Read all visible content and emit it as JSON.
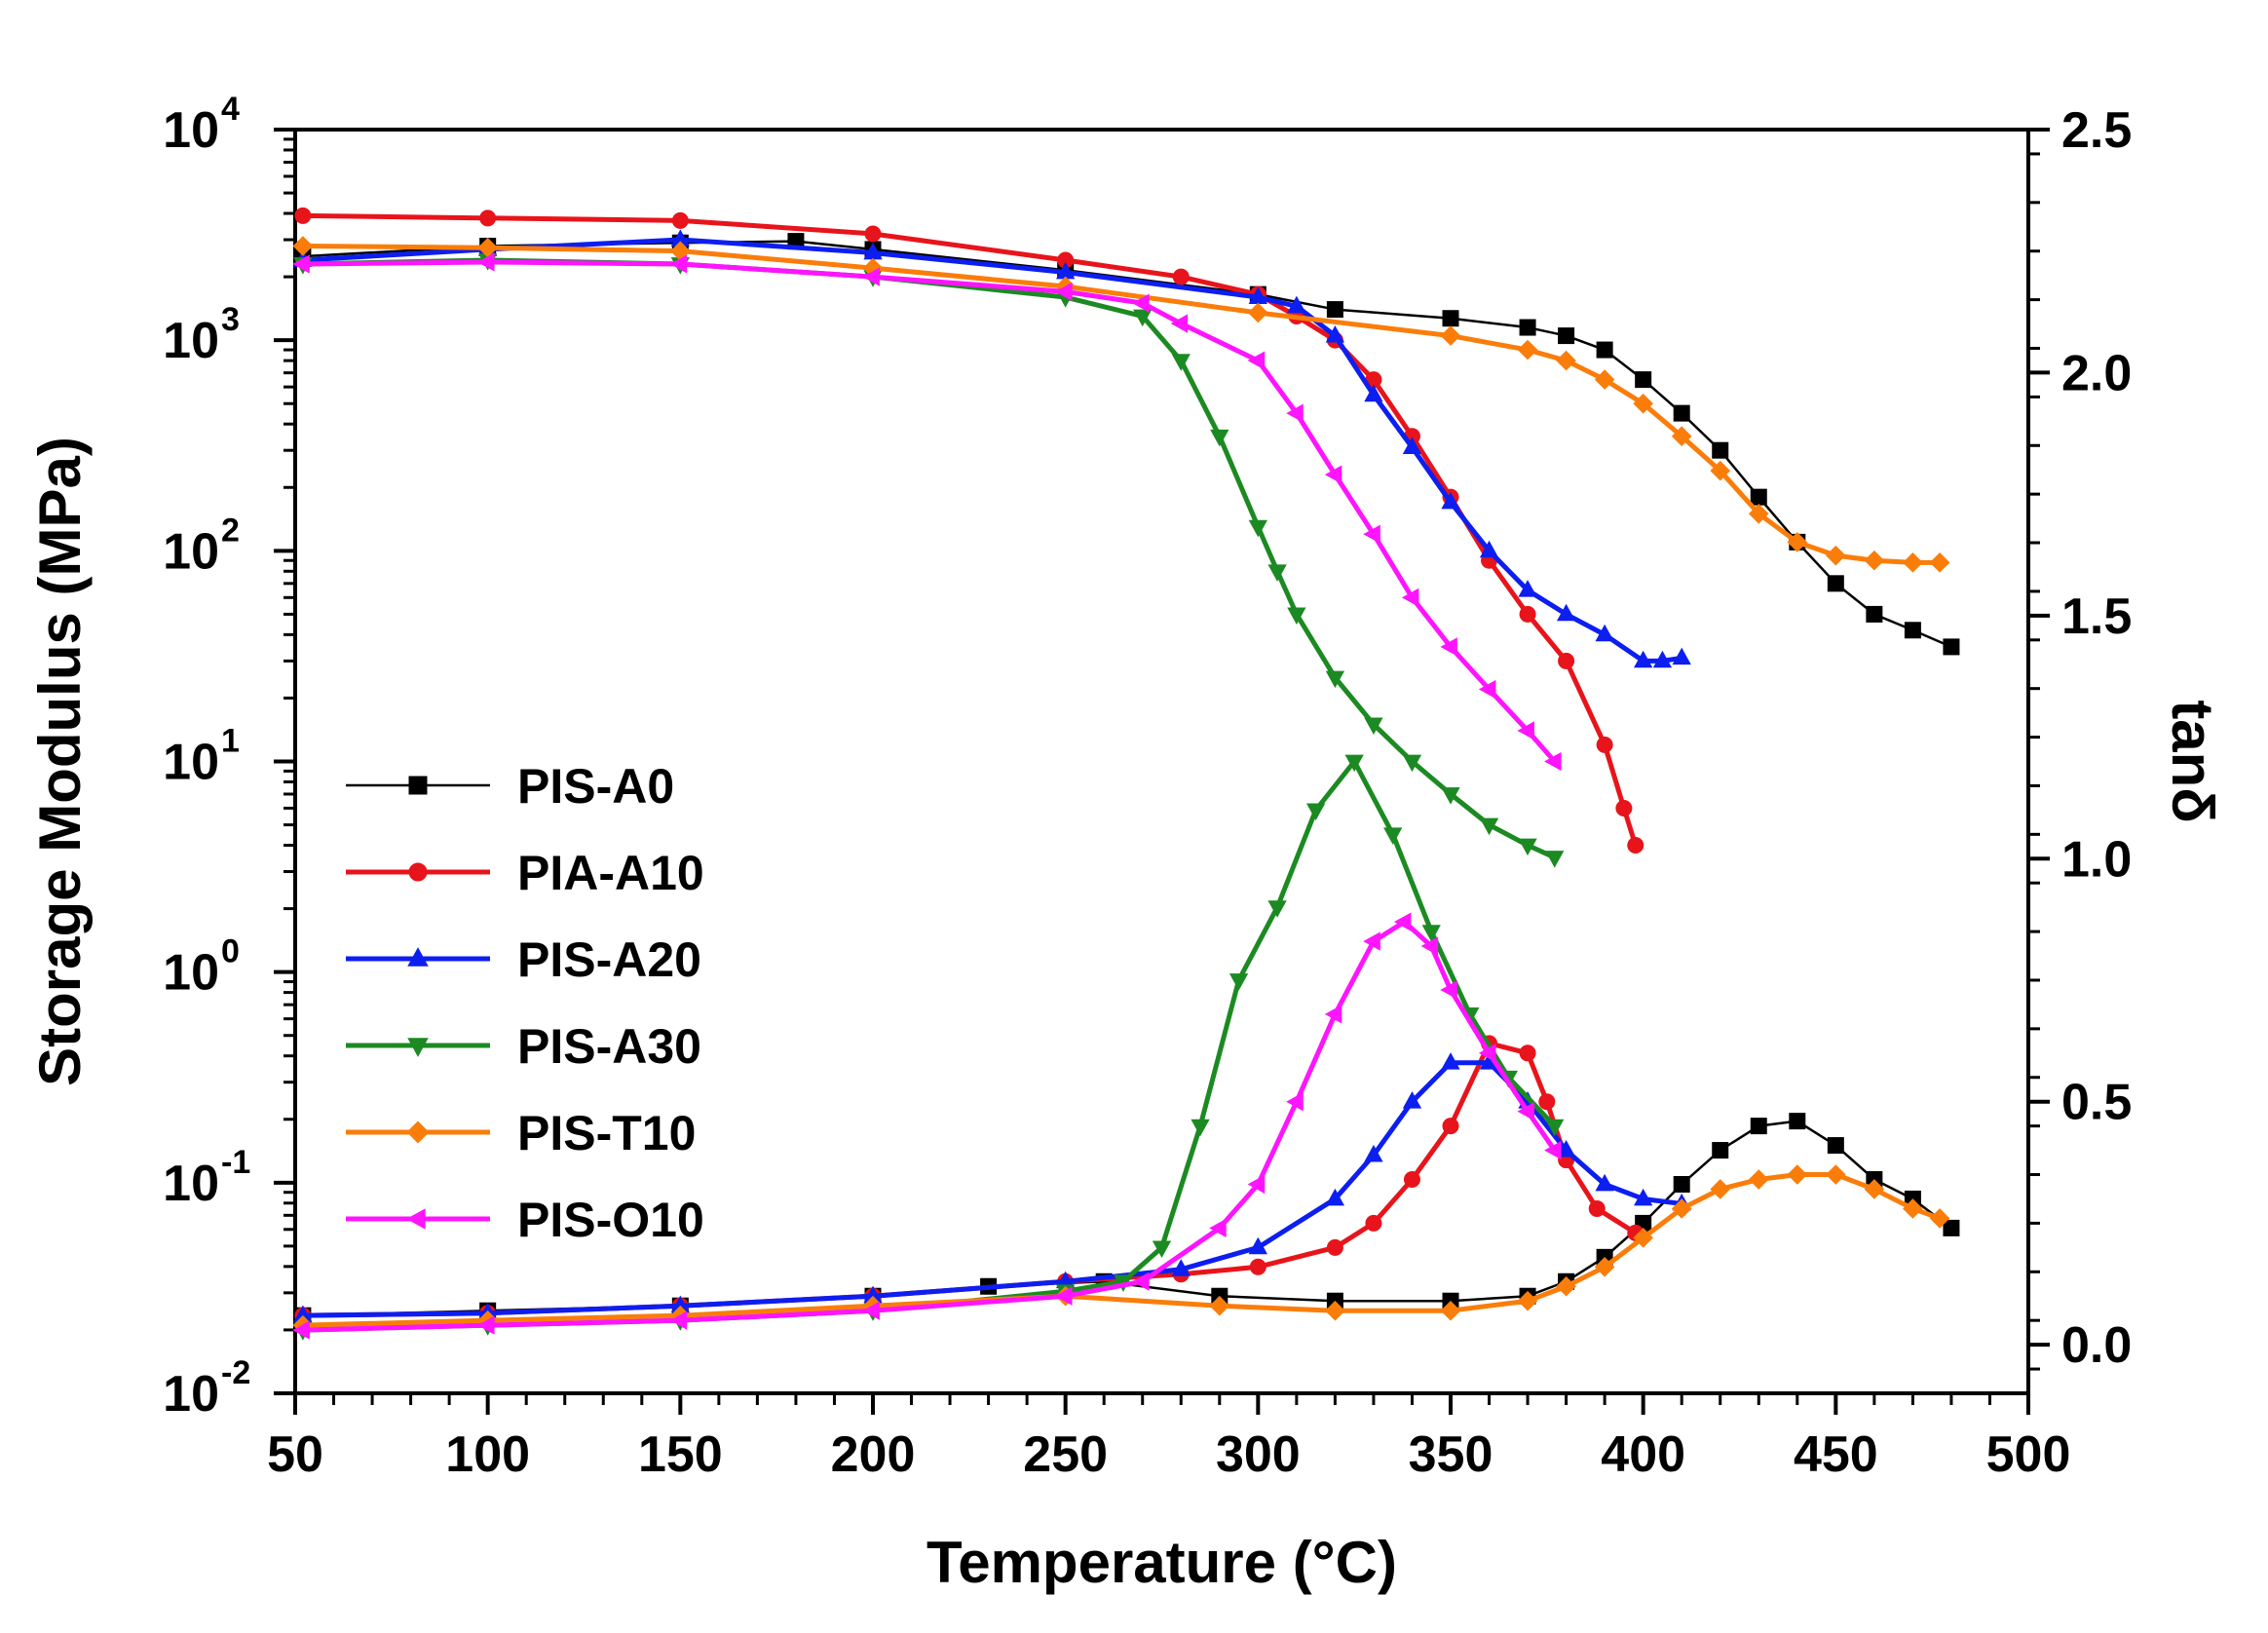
{
  "chart_data": {
    "type": "line",
    "xlabel": "Temperature (°C)",
    "ylabel": "Storage Modulus (MPa)",
    "y2label": "tanδ",
    "xlim": [
      50,
      500
    ],
    "ylim_log": [
      -2,
      4
    ],
    "y2lim": [
      -0.1,
      2.5
    ],
    "x_ticks": [
      "50",
      "100",
      "150",
      "200",
      "250",
      "300",
      "350",
      "400",
      "450",
      "500"
    ],
    "y_ticks": [
      {
        "base": "10",
        "exp": "4"
      },
      {
        "base": "10",
        "exp": "3"
      },
      {
        "base": "10",
        "exp": "2"
      },
      {
        "base": "10",
        "exp": "1"
      },
      {
        "base": "10",
        "exp": "0"
      },
      {
        "base": "10",
        "exp": "-1"
      },
      {
        "base": "10",
        "exp": "-2"
      }
    ],
    "y2_ticks": [
      "2.5",
      "2.0",
      "1.5",
      "1.0",
      "0.5",
      "0.0"
    ],
    "legend_position": "left-middle",
    "series": [
      {
        "name": "PIS-A0",
        "color": "#000000",
        "marker": "square",
        "line_width": "thin",
        "modulus": [
          [
            52,
            2500
          ],
          [
            100,
            2800
          ],
          [
            150,
            2900
          ],
          [
            180,
            2950
          ],
          [
            200,
            2700
          ],
          [
            250,
            2150
          ],
          [
            300,
            1650
          ],
          [
            320,
            1400
          ],
          [
            350,
            1270
          ],
          [
            370,
            1150
          ],
          [
            380,
            1050
          ],
          [
            390,
            900
          ],
          [
            400,
            650
          ],
          [
            410,
            450
          ],
          [
            420,
            300
          ],
          [
            430,
            180
          ],
          [
            440,
            110
          ],
          [
            450,
            70
          ],
          [
            460,
            50
          ],
          [
            470,
            42
          ],
          [
            480,
            35
          ]
        ],
        "tan_delta": [
          [
            52,
            0.06
          ],
          [
            100,
            0.07
          ],
          [
            150,
            0.08
          ],
          [
            200,
            0.1
          ],
          [
            230,
            0.12
          ],
          [
            260,
            0.13
          ],
          [
            290,
            0.1
          ],
          [
            320,
            0.09
          ],
          [
            350,
            0.09
          ],
          [
            370,
            0.1
          ],
          [
            380,
            0.13
          ],
          [
            390,
            0.18
          ],
          [
            400,
            0.25
          ],
          [
            410,
            0.33
          ],
          [
            420,
            0.4
          ],
          [
            430,
            0.45
          ],
          [
            440,
            0.46
          ],
          [
            450,
            0.41
          ],
          [
            460,
            0.34
          ],
          [
            470,
            0.3
          ],
          [
            480,
            0.24
          ]
        ]
      },
      {
        "name": "PIA-A10",
        "color": "#e8141b",
        "marker": "circle",
        "line_width": "thick",
        "modulus": [
          [
            52,
            3900
          ],
          [
            100,
            3800
          ],
          [
            150,
            3700
          ],
          [
            200,
            3200
          ],
          [
            250,
            2400
          ],
          [
            280,
            2000
          ],
          [
            300,
            1650
          ],
          [
            310,
            1300
          ],
          [
            320,
            1000
          ],
          [
            330,
            650
          ],
          [
            340,
            350
          ],
          [
            350,
            180
          ],
          [
            360,
            90
          ],
          [
            370,
            50
          ],
          [
            380,
            30
          ],
          [
            390,
            12
          ],
          [
            395,
            6
          ],
          [
            398,
            4
          ]
        ],
        "tan_delta": [
          [
            52,
            0.06
          ],
          [
            100,
            0.065
          ],
          [
            150,
            0.08
          ],
          [
            200,
            0.1
          ],
          [
            250,
            0.13
          ],
          [
            280,
            0.145
          ],
          [
            300,
            0.16
          ],
          [
            320,
            0.2
          ],
          [
            330,
            0.25
          ],
          [
            340,
            0.34
          ],
          [
            350,
            0.45
          ],
          [
            360,
            0.62
          ],
          [
            370,
            0.6
          ],
          [
            375,
            0.5
          ],
          [
            380,
            0.38
          ],
          [
            388,
            0.28
          ],
          [
            398,
            0.23
          ]
        ]
      },
      {
        "name": "PIS-A20",
        "color": "#0d1ef0",
        "marker": "triangle-up",
        "line_width": "thick",
        "modulus": [
          [
            52,
            2400
          ],
          [
            100,
            2700
          ],
          [
            150,
            3000
          ],
          [
            200,
            2600
          ],
          [
            250,
            2100
          ],
          [
            300,
            1600
          ],
          [
            310,
            1450
          ],
          [
            320,
            1050
          ],
          [
            330,
            550
          ],
          [
            340,
            310
          ],
          [
            350,
            170
          ],
          [
            360,
            100
          ],
          [
            370,
            65
          ],
          [
            380,
            50
          ],
          [
            390,
            40
          ],
          [
            400,
            30
          ],
          [
            405,
            30
          ],
          [
            410,
            31
          ]
        ],
        "tan_delta": [
          [
            52,
            0.06
          ],
          [
            100,
            0.065
          ],
          [
            150,
            0.08
          ],
          [
            200,
            0.1
          ],
          [
            250,
            0.13
          ],
          [
            280,
            0.155
          ],
          [
            300,
            0.2
          ],
          [
            320,
            0.3
          ],
          [
            330,
            0.39
          ],
          [
            340,
            0.5
          ],
          [
            350,
            0.58
          ],
          [
            360,
            0.58
          ],
          [
            370,
            0.5
          ],
          [
            380,
            0.4
          ],
          [
            390,
            0.33
          ],
          [
            400,
            0.3
          ],
          [
            410,
            0.29
          ]
        ]
      },
      {
        "name": "PIS-A30",
        "color": "#1c8a22",
        "marker": "triangle-down",
        "line_width": "thick",
        "modulus": [
          [
            52,
            2300
          ],
          [
            100,
            2400
          ],
          [
            150,
            2300
          ],
          [
            200,
            2000
          ],
          [
            250,
            1600
          ],
          [
            270,
            1300
          ],
          [
            280,
            800
          ],
          [
            290,
            350
          ],
          [
            300,
            130
          ],
          [
            305,
            80
          ],
          [
            310,
            50
          ],
          [
            320,
            25
          ],
          [
            330,
            15
          ],
          [
            340,
            10
          ],
          [
            350,
            7
          ],
          [
            360,
            5
          ],
          [
            370,
            4
          ],
          [
            377,
            3.5
          ]
        ],
        "tan_delta": [
          [
            52,
            0.03
          ],
          [
            100,
            0.04
          ],
          [
            150,
            0.05
          ],
          [
            200,
            0.07
          ],
          [
            250,
            0.11
          ],
          [
            265,
            0.13
          ],
          [
            275,
            0.2
          ],
          [
            285,
            0.45
          ],
          [
            295,
            0.75
          ],
          [
            305,
            0.9
          ],
          [
            315,
            1.1
          ],
          [
            325,
            1.2
          ],
          [
            335,
            1.05
          ],
          [
            345,
            0.85
          ],
          [
            355,
            0.68
          ],
          [
            365,
            0.55
          ],
          [
            377,
            0.45
          ]
        ]
      },
      {
        "name": "PIS-T10",
        "color": "#fa7d0a",
        "marker": "diamond",
        "line_width": "thick",
        "modulus": [
          [
            52,
            2800
          ],
          [
            100,
            2750
          ],
          [
            150,
            2650
          ],
          [
            200,
            2200
          ],
          [
            250,
            1800
          ],
          [
            300,
            1350
          ],
          [
            350,
            1050
          ],
          [
            370,
            900
          ],
          [
            380,
            800
          ],
          [
            390,
            650
          ],
          [
            400,
            500
          ],
          [
            410,
            350
          ],
          [
            420,
            240
          ],
          [
            430,
            150
          ],
          [
            440,
            110
          ],
          [
            450,
            95
          ],
          [
            460,
            90
          ],
          [
            470,
            88
          ],
          [
            477,
            88
          ]
        ],
        "tan_delta": [
          [
            52,
            0.04
          ],
          [
            100,
            0.05
          ],
          [
            150,
            0.06
          ],
          [
            200,
            0.08
          ],
          [
            250,
            0.1
          ],
          [
            290,
            0.08
          ],
          [
            320,
            0.07
          ],
          [
            350,
            0.07
          ],
          [
            370,
            0.09
          ],
          [
            380,
            0.12
          ],
          [
            390,
            0.16
          ],
          [
            400,
            0.22
          ],
          [
            410,
            0.28
          ],
          [
            420,
            0.32
          ],
          [
            430,
            0.34
          ],
          [
            440,
            0.35
          ],
          [
            450,
            0.35
          ],
          [
            460,
            0.32
          ],
          [
            470,
            0.28
          ],
          [
            477,
            0.26
          ]
        ]
      },
      {
        "name": "PIS-O10",
        "color": "#ff14ff",
        "marker": "triangle-left",
        "line_width": "thick",
        "modulus": [
          [
            52,
            2300
          ],
          [
            100,
            2350
          ],
          [
            150,
            2300
          ],
          [
            200,
            2000
          ],
          [
            250,
            1700
          ],
          [
            270,
            1500
          ],
          [
            280,
            1200
          ],
          [
            300,
            800
          ],
          [
            310,
            450
          ],
          [
            320,
            230
          ],
          [
            330,
            120
          ],
          [
            340,
            60
          ],
          [
            350,
            35
          ],
          [
            360,
            22
          ],
          [
            370,
            14
          ],
          [
            377,
            10
          ]
        ],
        "tan_delta": [
          [
            52,
            0.03
          ],
          [
            100,
            0.04
          ],
          [
            150,
            0.05
          ],
          [
            200,
            0.07
          ],
          [
            250,
            0.1
          ],
          [
            270,
            0.13
          ],
          [
            290,
            0.24
          ],
          [
            300,
            0.33
          ],
          [
            310,
            0.5
          ],
          [
            320,
            0.68
          ],
          [
            330,
            0.83
          ],
          [
            338,
            0.87
          ],
          [
            345,
            0.82
          ],
          [
            350,
            0.73
          ],
          [
            360,
            0.6
          ],
          [
            370,
            0.48
          ],
          [
            377,
            0.4
          ]
        ]
      }
    ]
  }
}
